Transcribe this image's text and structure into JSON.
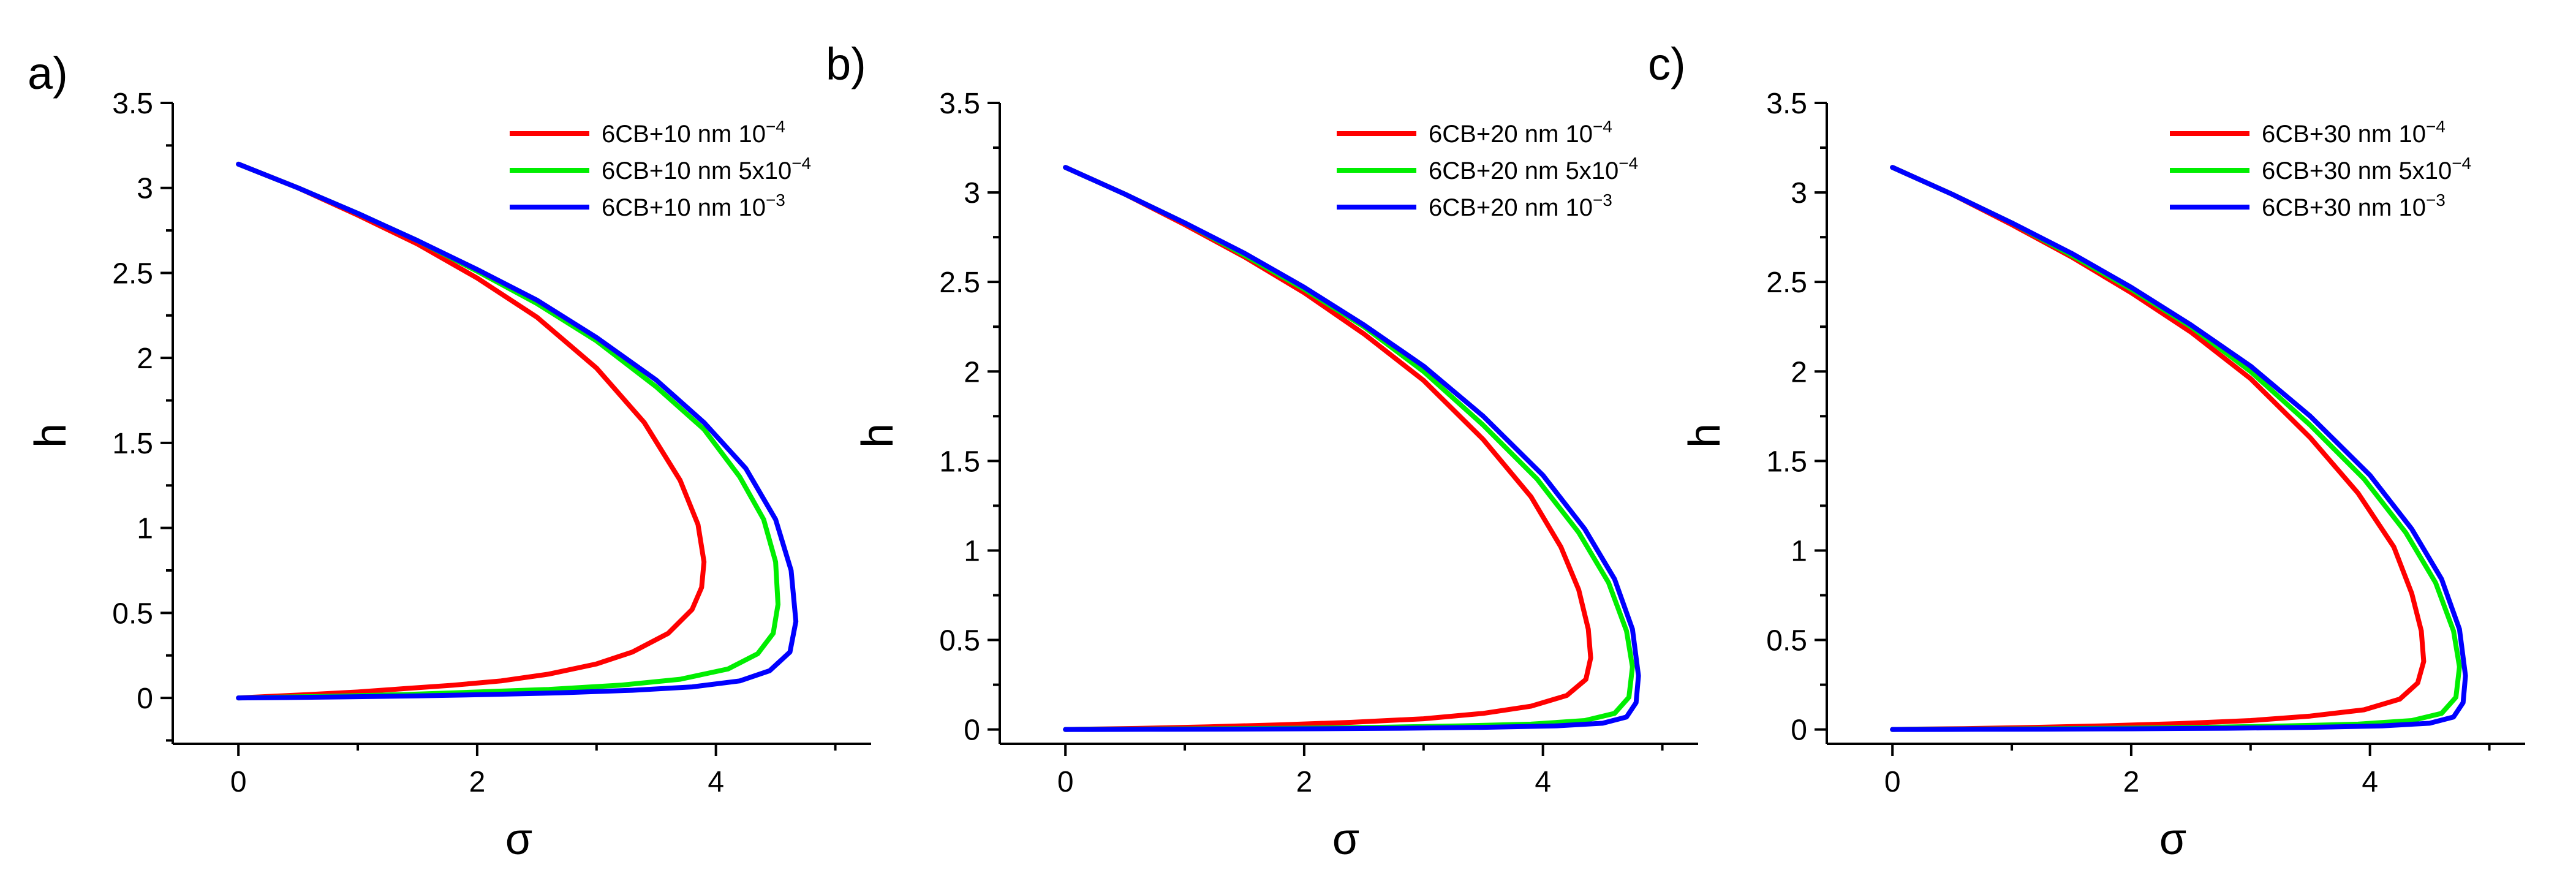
{
  "chart_data": [
    {
      "type": "line",
      "panel_label": "a)",
      "xlabel": "σ",
      "ylabel": "h",
      "xlim": [
        -0.55,
        5.3
      ],
      "ylim": [
        -0.27,
        3.5
      ],
      "xticks": [
        "0",
        "2",
        "4"
      ],
      "yticks": [
        "0",
        "0.5",
        "1",
        "1.5",
        "2",
        "2.5",
        "3",
        "3.5"
      ],
      "legend_position": "top-right",
      "series": [
        {
          "name": "6CB+10 nm 10",
          "exponent": "−4",
          "color": "#ff0000",
          "x": [
            0,
            0.5,
            1.0,
            1.5,
            2.0,
            2.5,
            3.0,
            3.4,
            3.7,
            3.85,
            3.9,
            3.88,
            3.8,
            3.6,
            3.3,
            3.0,
            2.6,
            2.2,
            1.8,
            1.4,
            1.0,
            0.6,
            0.3,
            0
          ],
          "y": [
            3.14,
            3.0,
            2.84,
            2.67,
            2.47,
            2.24,
            1.94,
            1.62,
            1.28,
            1.02,
            0.8,
            0.65,
            0.52,
            0.38,
            0.27,
            0.2,
            0.14,
            0.1,
            0.075,
            0.055,
            0.035,
            0.02,
            0.01,
            0.0
          ]
        },
        {
          "name": "6CB+10 nm 5x10",
          "exponent": "−4",
          "color": "#00ee00",
          "x": [
            0,
            0.5,
            1.0,
            1.5,
            2.0,
            2.5,
            3.0,
            3.5,
            3.9,
            4.2,
            4.4,
            4.5,
            4.52,
            4.48,
            4.35,
            4.1,
            3.7,
            3.2,
            2.6,
            2.0,
            1.4,
            0.8,
            0.3,
            0
          ],
          "y": [
            3.14,
            3.0,
            2.85,
            2.69,
            2.51,
            2.32,
            2.1,
            1.83,
            1.58,
            1.3,
            1.05,
            0.8,
            0.55,
            0.38,
            0.26,
            0.17,
            0.11,
            0.075,
            0.05,
            0.035,
            0.02,
            0.01,
            0.004,
            0.0
          ]
        },
        {
          "name": "6CB+10 nm 10",
          "exponent": "−3",
          "color": "#0000ff",
          "x": [
            0,
            0.5,
            1.0,
            1.5,
            2.0,
            2.5,
            3.0,
            3.5,
            3.9,
            4.25,
            4.5,
            4.63,
            4.67,
            4.62,
            4.45,
            4.2,
            3.8,
            3.3,
            2.7,
            2.1,
            1.5,
            0.9,
            0.4,
            0
          ],
          "y": [
            3.14,
            3.0,
            2.85,
            2.69,
            2.52,
            2.34,
            2.12,
            1.87,
            1.62,
            1.35,
            1.05,
            0.75,
            0.45,
            0.27,
            0.16,
            0.1,
            0.065,
            0.045,
            0.03,
            0.02,
            0.012,
            0.006,
            0.002,
            0.0
          ]
        }
      ]
    },
    {
      "type": "line",
      "panel_label": "b)",
      "xlabel": "σ",
      "ylabel": "h",
      "xlim": [
        -0.55,
        5.3
      ],
      "ylim": [
        -0.08,
        3.5
      ],
      "xticks": [
        "0",
        "2",
        "4"
      ],
      "yticks": [
        "0",
        "0.5",
        "1",
        "1.5",
        "2",
        "2.5",
        "3",
        "3.5"
      ],
      "legend_position": "top-right",
      "series": [
        {
          "name": "6CB+20 nm 10",
          "exponent": "−4",
          "color": "#ff0000",
          "x": [
            0,
            0.5,
            1.0,
            1.5,
            2.0,
            2.5,
            3.0,
            3.5,
            3.9,
            4.15,
            4.3,
            4.38,
            4.4,
            4.36,
            4.2,
            3.9,
            3.5,
            3.0,
            2.4,
            1.8,
            1.2,
            0.6,
            0.2,
            0
          ],
          "y": [
            3.14,
            2.99,
            2.82,
            2.64,
            2.44,
            2.21,
            1.95,
            1.62,
            1.3,
            1.02,
            0.78,
            0.56,
            0.4,
            0.28,
            0.19,
            0.13,
            0.09,
            0.06,
            0.04,
            0.026,
            0.015,
            0.006,
            0.002,
            0.0
          ]
        },
        {
          "name": "6CB+20 nm 5x10",
          "exponent": "−4",
          "color": "#00ee00",
          "x": [
            0,
            0.5,
            1.0,
            1.5,
            2.0,
            2.5,
            3.0,
            3.5,
            3.95,
            4.3,
            4.55,
            4.7,
            4.75,
            4.72,
            4.6,
            4.35,
            3.9,
            3.3,
            2.6,
            1.9,
            1.2,
            0.6,
            0.2,
            0
          ],
          "y": [
            3.14,
            2.99,
            2.83,
            2.65,
            2.46,
            2.25,
            2.0,
            1.7,
            1.4,
            1.1,
            0.82,
            0.55,
            0.35,
            0.18,
            0.09,
            0.05,
            0.03,
            0.02,
            0.012,
            0.007,
            0.004,
            0.002,
            0.001,
            0.0
          ]
        },
        {
          "name": "6CB+20 nm 10",
          "exponent": "−3",
          "color": "#0000ff",
          "x": [
            0,
            0.5,
            1.0,
            1.5,
            2.0,
            2.5,
            3.0,
            3.5,
            4.0,
            4.35,
            4.6,
            4.75,
            4.8,
            4.78,
            4.7,
            4.5,
            4.1,
            3.5,
            2.8,
            2.0,
            1.3,
            0.7,
            0.2,
            0
          ],
          "y": [
            3.14,
            2.99,
            2.83,
            2.66,
            2.47,
            2.26,
            2.03,
            1.75,
            1.42,
            1.12,
            0.84,
            0.56,
            0.3,
            0.15,
            0.07,
            0.035,
            0.02,
            0.012,
            0.007,
            0.004,
            0.002,
            0.001,
            0.0,
            0.0
          ]
        }
      ]
    },
    {
      "type": "line",
      "panel_label": "c)",
      "xlabel": "σ",
      "ylabel": "h",
      "xlim": [
        -0.55,
        5.3
      ],
      "ylim": [
        -0.08,
        3.5
      ],
      "xticks": [
        "0",
        "2",
        "4"
      ],
      "yticks": [
        "0",
        "0.5",
        "1",
        "1.5",
        "2",
        "2.5",
        "3",
        "3.5"
      ],
      "legend_position": "top-right",
      "series": [
        {
          "name": "6CB+30 nm 10",
          "exponent": "−4",
          "color": "#ff0000",
          "x": [
            0,
            0.5,
            1.0,
            1.5,
            2.0,
            2.5,
            3.0,
            3.5,
            3.9,
            4.2,
            4.35,
            4.43,
            4.45,
            4.4,
            4.25,
            3.95,
            3.5,
            3.0,
            2.4,
            1.8,
            1.2,
            0.6,
            0.2,
            0
          ],
          "y": [
            3.14,
            2.99,
            2.82,
            2.64,
            2.44,
            2.22,
            1.96,
            1.63,
            1.32,
            1.02,
            0.76,
            0.55,
            0.38,
            0.26,
            0.17,
            0.11,
            0.075,
            0.05,
            0.033,
            0.021,
            0.012,
            0.005,
            0.002,
            0.0
          ]
        },
        {
          "name": "6CB+30 nm 5x10",
          "exponent": "−4",
          "color": "#00ee00",
          "x": [
            0,
            0.5,
            1.0,
            1.5,
            2.0,
            2.5,
            3.0,
            3.5,
            3.95,
            4.3,
            4.55,
            4.7,
            4.75,
            4.72,
            4.6,
            4.35,
            3.9,
            3.3,
            2.6,
            1.9,
            1.2,
            0.6,
            0.2,
            0
          ],
          "y": [
            3.14,
            2.99,
            2.83,
            2.65,
            2.46,
            2.25,
            2.0,
            1.7,
            1.4,
            1.1,
            0.82,
            0.55,
            0.35,
            0.18,
            0.09,
            0.05,
            0.03,
            0.02,
            0.012,
            0.007,
            0.004,
            0.002,
            0.001,
            0.0
          ]
        },
        {
          "name": "6CB+30 nm 10",
          "exponent": "−3",
          "color": "#0000ff",
          "x": [
            0,
            0.5,
            1.0,
            1.5,
            2.0,
            2.5,
            3.0,
            3.5,
            4.0,
            4.35,
            4.6,
            4.75,
            4.8,
            4.78,
            4.7,
            4.5,
            4.1,
            3.5,
            2.8,
            2.0,
            1.3,
            0.7,
            0.2,
            0
          ],
          "y": [
            3.14,
            2.99,
            2.83,
            2.66,
            2.47,
            2.26,
            2.03,
            1.75,
            1.42,
            1.12,
            0.84,
            0.56,
            0.3,
            0.15,
            0.07,
            0.035,
            0.02,
            0.012,
            0.007,
            0.004,
            0.002,
            0.001,
            0.0,
            0.0
          ]
        }
      ]
    }
  ]
}
